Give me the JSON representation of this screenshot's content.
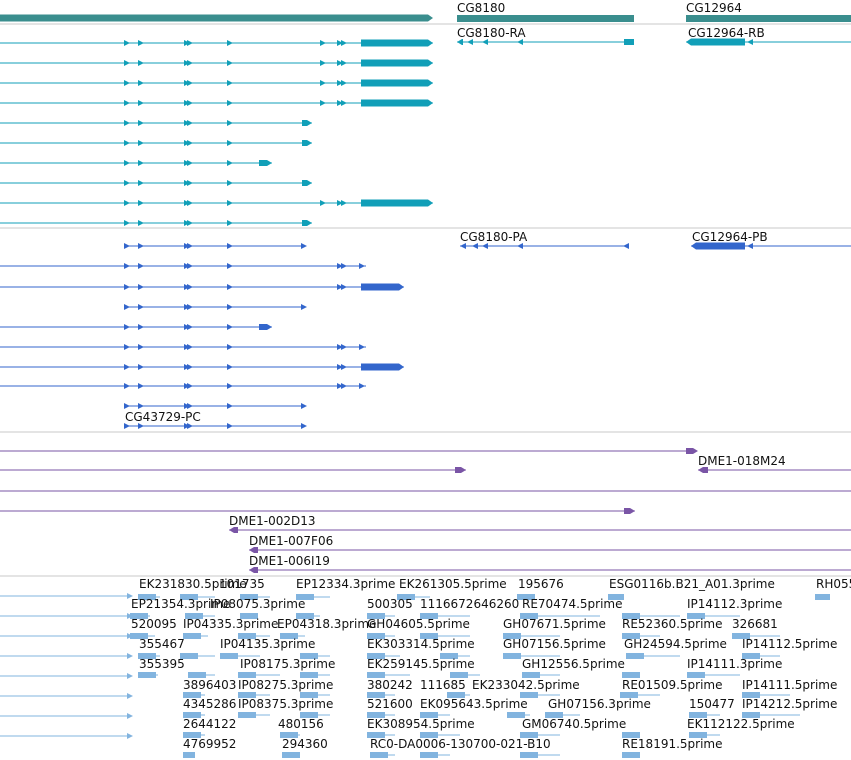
{
  "colors": {
    "gene": "#3a8e8e",
    "rna_upper": "#119fb8",
    "rna_lower": "#3366cc",
    "clone": "#7a55a6",
    "est": "#82b4df",
    "separator": "#c8c8c8",
    "text": "#111111"
  },
  "genes": [
    {
      "name": "CG8180",
      "label": "CG8180"
    },
    {
      "name": "CG12964",
      "label": "CG12964"
    }
  ],
  "transcripts_upper": [
    {
      "label": "CG8180-RA"
    },
    {
      "label": "CG12964-RB"
    }
  ],
  "transcripts_lower": [
    {
      "label": "CG8180-PA"
    },
    {
      "label": "CG12964-PB"
    },
    {
      "label": "CG43729-PC"
    }
  ],
  "clones": [
    {
      "label": "DME1-018M24"
    },
    {
      "label": "DME1-002D13"
    },
    {
      "label": "DME1-007F06"
    },
    {
      "label": "DME1-006I19"
    }
  ],
  "ests": [
    "EK231830.5prime",
    "101735",
    "EP12334.3prime",
    "EK261305.5prime",
    "195676",
    "ESG0116b.B21_A01.3prime",
    "RH055",
    "EP21354.3prime",
    "IP08075.3prime",
    "500305",
    "1116672646260",
    "RE70474.5prime",
    "IP14112.3prime",
    "520095",
    "IP04335.3prime",
    "EP04318.3prime",
    "GH04605.5prime",
    "GH07671.5prime",
    "RE52360.5prime",
    "326681",
    "355467",
    "IP04135.3prime",
    "EK303314.5prime",
    "GH07156.5prime",
    "GH24594.5prime",
    "IP14112.5prime",
    "355395",
    "IP08175.3prime",
    "EK259145.5prime",
    "GH12556.5prime",
    "IP14111.3prime",
    "3896403",
    "IP08275.3prime",
    "380242",
    "111685",
    "EK233042.5prime",
    "RE01509.5prime",
    "IP14111.5prime",
    "4345286",
    "IP08375.3prime",
    "521600",
    "EK095643.5prime",
    "GH07156.3prime",
    "150477",
    "IP14212.5prime",
    "2644122",
    "480156",
    "EK308954.5prime",
    "GM06740.5prime",
    "EK112122.5prime",
    "4769952",
    "294360",
    "RC0-DA0006-130700-021-B10",
    "RE18191.5prime"
  ]
}
